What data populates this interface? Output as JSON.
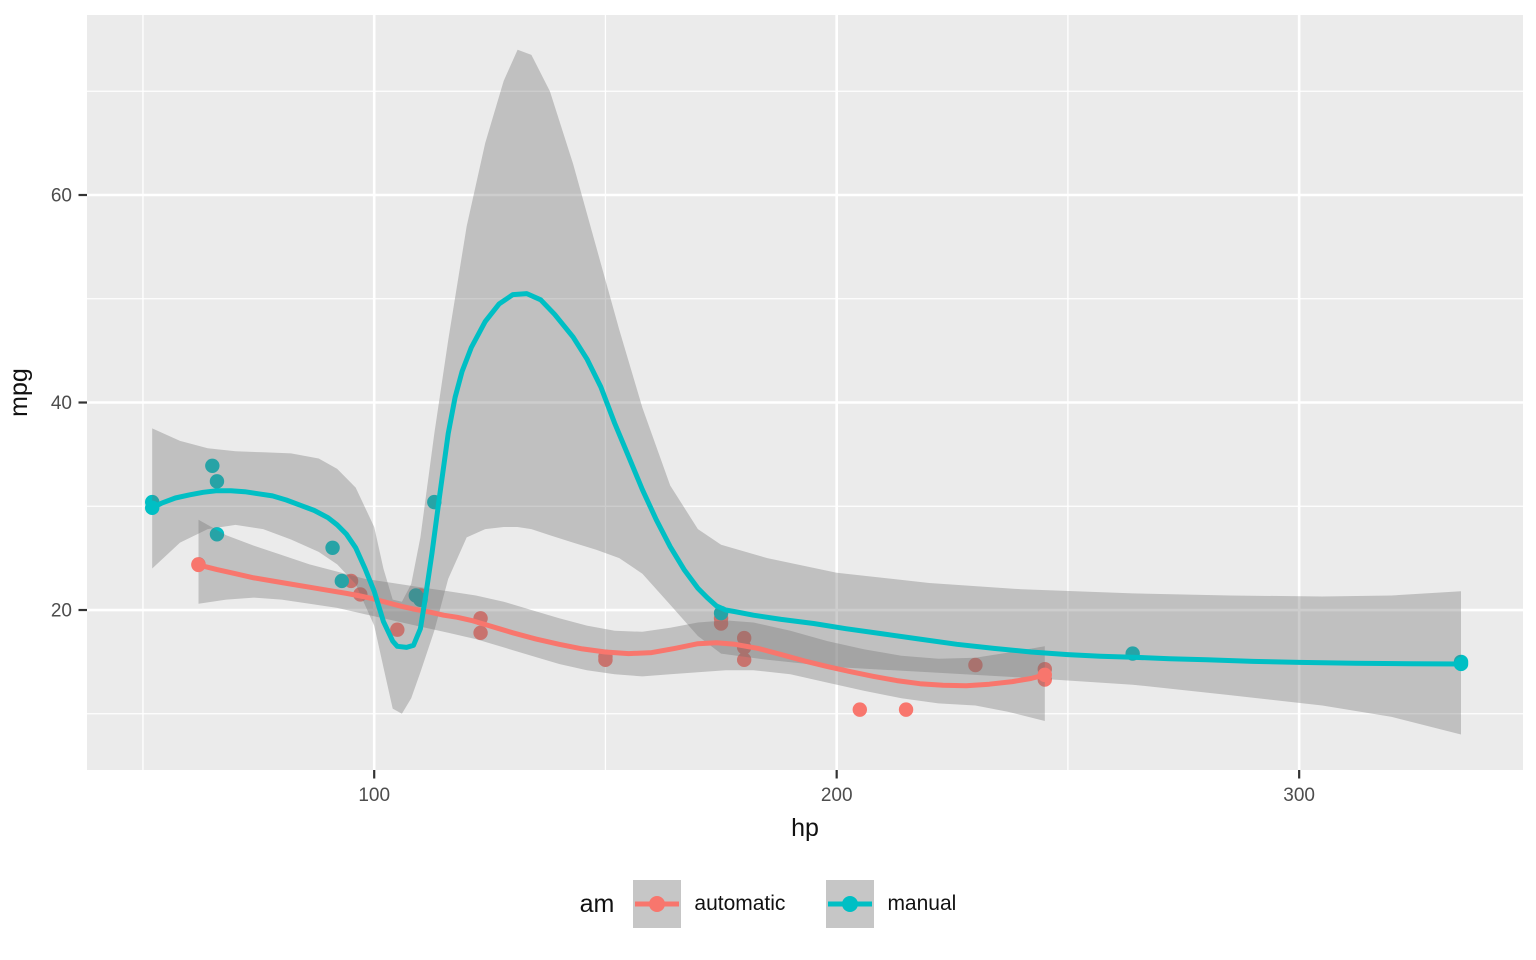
{
  "chart_data": {
    "type": "scatter",
    "description": "ggplot2 scatter plot of mpg vs hp with loess smooth lines and confidence ribbons, grouped by transmission (am)",
    "xlabel": "hp",
    "ylabel": "mpg",
    "x_domain": [
      37.9,
      348.4
    ],
    "y_domain": [
      4.58,
      77.35
    ],
    "x_major_ticks": [
      100,
      200,
      300
    ],
    "x_minor_ticks": [
      50,
      150,
      250
    ],
    "y_major_ticks": [
      20,
      40,
      60
    ],
    "y_minor_ticks": [
      10,
      30,
      50,
      70
    ],
    "grid": true,
    "colors": {
      "panel_bg": "#EBEBEB",
      "grid": "#FFFFFF",
      "ribbon": "rgba(113,113,113,0.35)",
      "tick_mark": "#333333",
      "tick_label": "#4D4D4D",
      "axis_title": "#111111",
      "legend_key_bg": "#C6C6C6"
    },
    "legend": {
      "title": "am",
      "position": "bottom",
      "entries": [
        {
          "label": "automatic",
          "color": "#F8766D"
        },
        {
          "label": "manual",
          "color": "#00BFC4"
        }
      ]
    },
    "series": [
      {
        "name": "automatic",
        "color": "#F8766D",
        "points": [
          [
            110,
            21.4
          ],
          [
            175,
            18.7
          ],
          [
            105,
            18.1
          ],
          [
            245,
            14.3
          ],
          [
            62,
            24.4
          ],
          [
            95,
            22.8
          ],
          [
            123,
            19.2
          ],
          [
            123,
            17.8
          ],
          [
            180,
            16.4
          ],
          [
            180,
            17.3
          ],
          [
            180,
            15.2
          ],
          [
            205,
            10.4
          ],
          [
            215,
            10.4
          ],
          [
            230,
            14.7
          ],
          [
            97,
            21.5
          ],
          [
            150,
            15.5
          ],
          [
            150,
            15.2
          ],
          [
            245,
            13.3
          ],
          [
            175,
            19.2
          ]
        ],
        "smooth_line": [
          [
            62,
            24.35
          ],
          [
            66,
            23.9
          ],
          [
            70,
            23.5
          ],
          [
            74,
            23.1
          ],
          [
            78,
            22.8
          ],
          [
            82,
            22.5
          ],
          [
            86,
            22.2
          ],
          [
            90,
            21.9
          ],
          [
            94,
            21.6
          ],
          [
            97,
            21.35
          ],
          [
            100,
            21.05
          ],
          [
            103,
            20.7
          ],
          [
            106,
            20.35
          ],
          [
            109,
            20.05
          ],
          [
            112,
            19.8
          ],
          [
            115,
            19.5
          ],
          [
            118,
            19.3
          ],
          [
            121,
            19.0
          ],
          [
            124,
            18.6
          ],
          [
            127,
            18.2
          ],
          [
            130,
            17.8
          ],
          [
            135,
            17.2
          ],
          [
            140,
            16.7
          ],
          [
            145,
            16.25
          ],
          [
            150,
            15.95
          ],
          [
            155,
            15.8
          ],
          [
            160,
            15.9
          ],
          [
            165,
            16.3
          ],
          [
            170,
            16.75
          ],
          [
            174,
            16.85
          ],
          [
            178,
            16.7
          ],
          [
            183,
            16.3
          ],
          [
            188,
            15.7
          ],
          [
            193,
            15.1
          ],
          [
            198,
            14.55
          ],
          [
            203,
            14.05
          ],
          [
            208,
            13.6
          ],
          [
            213,
            13.2
          ],
          [
            218,
            12.9
          ],
          [
            223,
            12.75
          ],
          [
            228,
            12.7
          ],
          [
            233,
            12.85
          ],
          [
            238,
            13.1
          ],
          [
            242,
            13.4
          ],
          [
            245,
            13.75
          ]
        ],
        "ci_ribbon": [
          [
            62,
            20.6,
            28.7
          ],
          [
            68,
            21.0,
            27.2
          ],
          [
            74,
            21.2,
            26.2
          ],
          [
            80,
            21.0,
            25.3
          ],
          [
            86,
            20.6,
            24.4
          ],
          [
            92,
            20.2,
            23.7
          ],
          [
            98,
            19.6,
            23.0
          ],
          [
            104,
            19.0,
            22.6
          ],
          [
            110,
            18.4,
            22.2
          ],
          [
            116,
            17.8,
            21.8
          ],
          [
            122,
            17.2,
            21.4
          ],
          [
            128,
            16.4,
            20.8
          ],
          [
            134,
            15.6,
            20.0
          ],
          [
            140,
            14.8,
            19.2
          ],
          [
            146,
            14.2,
            18.5
          ],
          [
            152,
            13.8,
            18.0
          ],
          [
            158,
            13.6,
            17.9
          ],
          [
            164,
            13.8,
            18.3
          ],
          [
            170,
            14.0,
            18.8
          ],
          [
            176,
            14.2,
            19.0
          ],
          [
            182,
            14.2,
            18.8
          ],
          [
            190,
            13.8,
            18.0
          ],
          [
            198,
            13.0,
            17.0
          ],
          [
            206,
            12.2,
            16.2
          ],
          [
            214,
            11.5,
            15.6
          ],
          [
            222,
            11.0,
            15.3
          ],
          [
            230,
            10.8,
            15.4
          ],
          [
            237,
            10.2,
            15.9
          ],
          [
            245,
            9.3,
            16.5
          ]
        ]
      },
      {
        "name": "manual",
        "color": "#00BFC4",
        "points": [
          [
            110,
            21.0
          ],
          [
            110,
            21.0
          ],
          [
            93,
            22.8
          ],
          [
            66,
            32.4
          ],
          [
            52,
            30.4
          ],
          [
            65,
            33.9
          ],
          [
            66,
            27.3
          ],
          [
            91,
            26.0
          ],
          [
            113,
            30.4
          ],
          [
            264,
            15.8
          ],
          [
            175,
            19.7
          ],
          [
            335,
            15.0
          ],
          [
            109,
            21.4
          ]
        ],
        "smooth_line": [
          [
            52,
            29.85
          ],
          [
            54,
            30.3
          ],
          [
            57,
            30.8
          ],
          [
            60,
            31.1
          ],
          [
            63,
            31.35
          ],
          [
            66,
            31.5
          ],
          [
            69,
            31.5
          ],
          [
            72,
            31.4
          ],
          [
            75,
            31.2
          ],
          [
            78,
            31.0
          ],
          [
            81,
            30.6
          ],
          [
            84,
            30.1
          ],
          [
            87,
            29.6
          ],
          [
            90,
            28.9
          ],
          [
            92,
            28.2
          ],
          [
            94,
            27.3
          ],
          [
            96,
            26.0
          ],
          [
            98,
            24.0
          ],
          [
            100,
            21.8
          ],
          [
            102,
            18.9
          ],
          [
            104,
            17.0
          ],
          [
            105,
            16.5
          ],
          [
            107,
            16.4
          ],
          [
            108.5,
            16.6
          ],
          [
            110,
            18.2
          ],
          [
            111,
            21.0
          ],
          [
            112.5,
            25.5
          ],
          [
            114,
            30.5
          ],
          [
            116,
            37.0
          ],
          [
            117.5,
            40.5
          ],
          [
            119,
            43.0
          ],
          [
            121,
            45.3
          ],
          [
            124,
            47.8
          ],
          [
            127,
            49.5
          ],
          [
            130,
            50.4
          ],
          [
            133,
            50.5
          ],
          [
            136,
            49.9
          ],
          [
            139,
            48.5
          ],
          [
            143,
            46.3
          ],
          [
            146,
            44.2
          ],
          [
            149,
            41.5
          ],
          [
            152,
            38.0
          ],
          [
            155,
            34.8
          ],
          [
            158,
            31.6
          ],
          [
            161,
            28.7
          ],
          [
            164,
            26.1
          ],
          [
            167,
            23.9
          ],
          [
            170,
            22.1
          ],
          [
            172,
            21.2
          ],
          [
            174,
            20.4
          ],
          [
            176,
            20.0
          ],
          [
            178,
            19.85
          ],
          [
            182,
            19.5
          ],
          [
            188,
            19.1
          ],
          [
            195,
            18.7
          ],
          [
            202,
            18.2
          ],
          [
            210,
            17.7
          ],
          [
            218,
            17.2
          ],
          [
            226,
            16.7
          ],
          [
            234,
            16.3
          ],
          [
            242,
            15.95
          ],
          [
            250,
            15.7
          ],
          [
            257,
            15.55
          ],
          [
            264,
            15.45
          ],
          [
            272,
            15.3
          ],
          [
            280,
            15.2
          ],
          [
            290,
            15.05
          ],
          [
            300,
            14.95
          ],
          [
            312,
            14.87
          ],
          [
            324,
            14.82
          ],
          [
            335,
            14.8
          ]
        ],
        "ci_ribbon": [
          [
            52,
            24.0,
            37.5
          ],
          [
            58,
            26.5,
            36.3
          ],
          [
            64,
            27.8,
            35.6
          ],
          [
            70,
            28.2,
            35.3
          ],
          [
            76,
            27.8,
            35.2
          ],
          [
            82,
            26.8,
            35.1
          ],
          [
            88,
            25.6,
            34.6
          ],
          [
            92,
            24.4,
            33.6
          ],
          [
            96,
            22.5,
            31.8
          ],
          [
            100,
            18.5,
            28.0
          ],
          [
            102,
            14.5,
            24.0
          ],
          [
            104,
            10.5,
            21.0
          ],
          [
            106,
            10.0,
            20.8
          ],
          [
            108,
            11.5,
            22.5
          ],
          [
            110,
            14.0,
            27.0
          ],
          [
            113,
            18.0,
            37.0
          ],
          [
            116,
            23.0,
            46.0
          ],
          [
            120,
            27.0,
            57.0
          ],
          [
            124,
            27.8,
            65.0
          ],
          [
            128,
            28.0,
            71.0
          ],
          [
            131,
            28.0,
            74.0
          ],
          [
            134,
            27.8,
            73.5
          ],
          [
            138,
            27.2,
            70.0
          ],
          [
            143,
            26.5,
            63.0
          ],
          [
            148,
            25.8,
            55.0
          ],
          [
            153,
            25.0,
            47.0
          ],
          [
            158,
            23.5,
            39.5
          ],
          [
            164,
            20.5,
            32.0
          ],
          [
            170,
            17.5,
            27.8
          ],
          [
            175,
            15.8,
            26.3
          ],
          [
            185,
            15.2,
            25.0
          ],
          [
            200,
            14.5,
            23.6
          ],
          [
            220,
            14.0,
            22.6
          ],
          [
            240,
            13.5,
            22.0
          ],
          [
            264,
            12.8,
            21.6
          ],
          [
            285,
            11.8,
            21.4
          ],
          [
            305,
            10.8,
            21.3
          ],
          [
            320,
            9.7,
            21.4
          ],
          [
            335,
            8.0,
            21.8
          ]
        ]
      }
    ]
  }
}
